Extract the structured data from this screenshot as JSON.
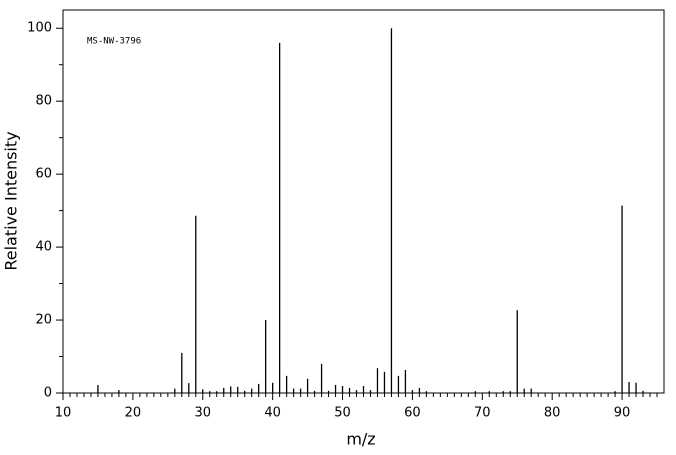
{
  "chart_data": {
    "type": "stick",
    "annotation": "MS-NW-3796",
    "x_label": "m/z",
    "y_label": "Relative Intensity",
    "x": [
      15,
      18,
      26,
      27,
      28,
      29,
      30,
      31,
      32,
      33,
      34,
      35,
      36,
      37,
      38,
      39,
      40,
      41,
      42,
      43,
      44,
      45,
      46,
      47,
      48,
      49,
      50,
      51,
      52,
      53,
      54,
      55,
      56,
      57,
      58,
      59,
      60,
      61,
      62,
      69,
      71,
      73,
      74,
      75,
      76,
      77,
      89,
      90,
      91,
      92,
      93
    ],
    "values": [
      2.2,
      0.8,
      1.2,
      11,
      2.7,
      48.6,
      1,
      0.5,
      0.5,
      1.4,
      1.8,
      1.7,
      0.6,
      1.2,
      2.5,
      20,
      2.8,
      96,
      4.7,
      1.2,
      1.2,
      3.9,
      0.6,
      8,
      0.6,
      2.2,
      1.9,
      1.4,
      0.8,
      1.9,
      0.8,
      6.8,
      5.8,
      100,
      4.7,
      6.3,
      0.8,
      1.4,
      0.5,
      0.5,
      0.5,
      0.5,
      0.5,
      22.7,
      1.2,
      1.2,
      0.5,
      51.4,
      3,
      2.8,
      0.6
    ],
    "color": "#000000",
    "xlim": [
      10,
      96
    ],
    "ylim": [
      0,
      105
    ],
    "xticks": [
      10,
      20,
      30,
      40,
      50,
      60,
      70,
      80,
      90
    ],
    "yticks": [
      0,
      20,
      40,
      60,
      80,
      100
    ],
    "xminorticks": [
      11,
      12,
      13,
      14,
      15,
      16,
      17,
      18,
      19,
      21,
      22,
      23,
      24,
      25,
      26,
      27,
      28,
      29,
      31,
      32,
      33,
      34,
      35,
      36,
      37,
      38,
      39,
      41,
      42,
      43,
      44,
      45,
      46,
      47,
      48,
      49,
      51,
      52,
      53,
      54,
      55,
      56,
      57,
      58,
      59,
      61,
      62,
      63,
      64,
      65,
      66,
      67,
      68,
      69,
      71,
      72,
      73,
      74,
      75,
      76,
      77,
      78,
      79,
      81,
      82,
      83,
      84,
      85,
      86,
      87,
      88,
      89,
      91,
      92,
      93,
      94,
      95
    ],
    "yminorticks": [
      10,
      30,
      50,
      70,
      90
    ]
  }
}
